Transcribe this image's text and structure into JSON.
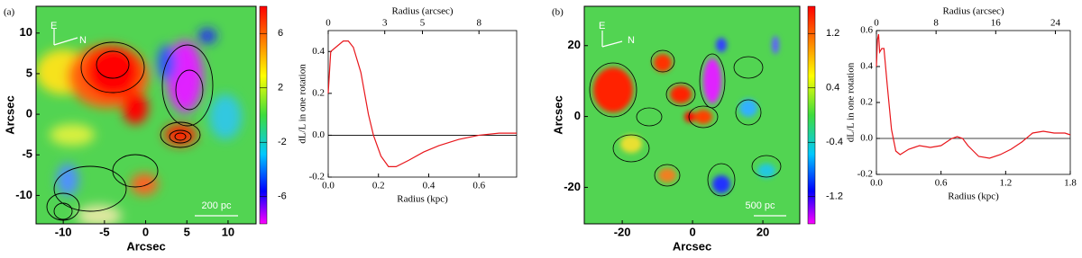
{
  "chart_data": [
    {
      "type": "heatmap",
      "panel_label": "(a)",
      "xlabel": "Arcsec",
      "ylabel": "Arcsec",
      "xlim": [
        -13.3,
        13.4
      ],
      "ylim": [
        -13.5,
        13.3
      ],
      "xticks": [
        -10,
        -5,
        0,
        5,
        10
      ],
      "yticks": [
        -10,
        -5,
        0,
        5,
        10
      ],
      "clim": [
        -8,
        8
      ],
      "cticks": [
        6,
        2,
        -2,
        -6
      ],
      "compass": [
        "E",
        "N"
      ],
      "scalebar": "200 pc"
    },
    {
      "type": "line",
      "xlabel": "Radius (kpc)",
      "ylabel": "dL/L in one rotation",
      "x2label": "Radius (arcsec)",
      "xlim": [
        0,
        0.75
      ],
      "ylim": [
        -0.2,
        0.5
      ],
      "xticks": [
        {
          "value": 0,
          "label": "0.0"
        },
        {
          "value": 0.2,
          "label": "0.2"
        },
        {
          "value": 0.4,
          "label": "0.4"
        },
        {
          "value": 0.6,
          "label": "0.6"
        }
      ],
      "yticks": [
        {
          "value": -0.2,
          "label": "-0.2"
        },
        {
          "value": 0,
          "label": "0.0"
        },
        {
          "value": 0.2,
          "label": "0.2"
        },
        {
          "value": 0.4,
          "label": "0.4"
        }
      ],
      "x2lim": [
        0,
        10
      ],
      "x2ticks": [
        0,
        3,
        5,
        8
      ],
      "color": "#e8161b",
      "x": [
        0,
        0.01,
        0.03,
        0.06,
        0.08,
        0.1,
        0.13,
        0.16,
        0.18,
        0.21,
        0.24,
        0.27,
        0.32,
        0.38,
        0.44,
        0.52,
        0.6,
        0.68,
        0.75
      ],
      "y": [
        0.2,
        0.4,
        0.42,
        0.45,
        0.45,
        0.42,
        0.3,
        0.1,
        0.0,
        -0.1,
        -0.15,
        -0.15,
        -0.12,
        -0.08,
        -0.05,
        -0.02,
        0.0,
        0.01,
        0.01
      ]
    },
    {
      "type": "heatmap",
      "panel_label": "(b)",
      "xlabel": "Arcsec",
      "ylabel": "Arcsec",
      "xlim": [
        -30.8,
        30.5
      ],
      "ylim": [
        -30.3,
        31.1
      ],
      "xticks": [
        -20,
        0,
        20
      ],
      "yticks": [
        -20,
        0,
        20
      ],
      "clim": [
        -1.6,
        1.6
      ],
      "cticks": [
        1.2,
        0.4,
        -0.4,
        -1.2
      ],
      "compass": [
        "E",
        "N"
      ],
      "scalebar": "500 pc"
    },
    {
      "type": "line",
      "xlabel": "Radius (kpc)",
      "ylabel": "dL/L in one rotation",
      "x2label": "Radius (arcsec)",
      "xlim": [
        0,
        1.8
      ],
      "ylim": [
        -0.2,
        0.6
      ],
      "xticks": [
        {
          "value": 0,
          "label": "0.0"
        },
        {
          "value": 0.6,
          "label": "0.6"
        },
        {
          "value": 1.2,
          "label": "1.2"
        },
        {
          "value": 1.8,
          "label": "1.8"
        }
      ],
      "yticks": [
        {
          "value": -0.2,
          "label": "-0.2"
        },
        {
          "value": 0,
          "label": "0.0"
        },
        {
          "value": 0.2,
          "label": "0.2"
        },
        {
          "value": 0.4,
          "label": "0.4"
        },
        {
          "value": 0.6,
          "label": "0.6"
        }
      ],
      "x2lim": [
        0,
        26
      ],
      "x2ticks": [
        0,
        8,
        16,
        24
      ],
      "color": "#e8161b",
      "x": [
        0,
        0.01,
        0.02,
        0.03,
        0.05,
        0.07,
        0.1,
        0.14,
        0.18,
        0.22,
        0.3,
        0.4,
        0.5,
        0.6,
        0.7,
        0.75,
        0.8,
        0.85,
        0.95,
        1.05,
        1.15,
        1.25,
        1.35,
        1.45,
        1.55,
        1.65,
        1.75,
        1.8
      ],
      "y": [
        0.4,
        0.55,
        0.58,
        0.48,
        0.5,
        0.5,
        0.3,
        0.05,
        -0.07,
        -0.09,
        -0.06,
        -0.04,
        -0.05,
        -0.04,
        0.0,
        0.01,
        0.0,
        -0.04,
        -0.1,
        -0.11,
        -0.09,
        -0.06,
        -0.02,
        0.03,
        0.04,
        0.03,
        0.03,
        0.02
      ]
    }
  ]
}
